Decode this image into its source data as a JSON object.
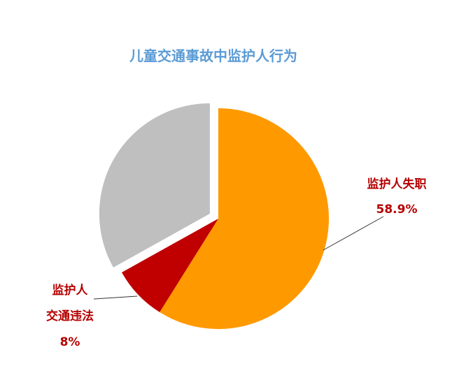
{
  "chart_data": {
    "type": "pie",
    "title": "儿童交通事故中监护人行为",
    "categories": [
      "监护人失职",
      "监护人\n交通违法",
      null
    ],
    "values": [
      58.9,
      8,
      33.1
    ],
    "value_labels": [
      "58.9%",
      "8%",
      null
    ],
    "colors": [
      "#ff9900",
      "#c00000",
      "#bfbfbf"
    ]
  }
}
